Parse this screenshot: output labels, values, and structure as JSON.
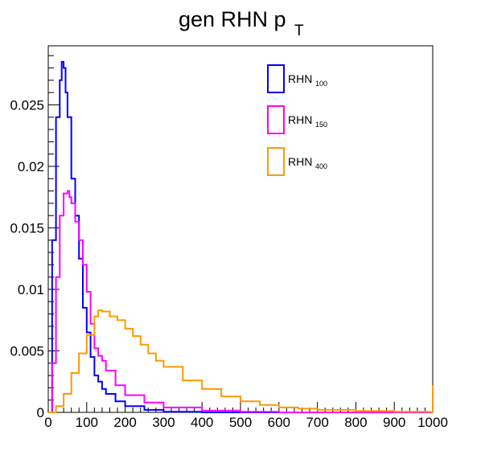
{
  "chart_data": {
    "type": "line",
    "style": "step-histogram",
    "title_main": "gen RHN p",
    "title_sub": "T",
    "xlabel": "",
    "ylabel": "",
    "xlim": [
      0,
      1000
    ],
    "ylim": [
      0,
      0.0298
    ],
    "xticks": [
      0,
      100,
      200,
      300,
      400,
      500,
      600,
      700,
      800,
      900,
      1000
    ],
    "xtick_labels": [
      "0",
      "100",
      "200",
      "300",
      "400",
      "500",
      "600",
      "700",
      "800",
      "900",
      "1000"
    ],
    "yticks": [
      0,
      0.005,
      0.01,
      0.015,
      0.02,
      0.025
    ],
    "ytick_labels": [
      "0",
      "0.005",
      "0.01",
      "0.015",
      "0.02",
      "0.025"
    ],
    "grid": false,
    "legend_position": "top-right",
    "series": [
      {
        "name": "RHN",
        "name_sub": "100",
        "color": "#0000ff",
        "x": [
          0,
          10,
          20,
          30,
          35,
          40,
          45,
          50,
          60,
          70,
          80,
          90,
          100,
          110,
          120,
          130,
          140,
          150,
          175,
          200,
          250,
          300,
          400,
          1000
        ],
        "y": [
          0,
          0.014,
          0.024,
          0.027,
          0.0285,
          0.028,
          0.026,
          0.024,
          0.019,
          0.016,
          0.0125,
          0.0085,
          0.0065,
          0.0045,
          0.003,
          0.0025,
          0.0019,
          0.0015,
          0.0009,
          0.0005,
          0.0002,
          5e-05,
          0,
          0
        ]
      },
      {
        "name": "RHN",
        "name_sub": "150",
        "color": "#ff00ff",
        "x": [
          0,
          10,
          20,
          30,
          40,
          50,
          55,
          60,
          70,
          80,
          90,
          100,
          110,
          120,
          130,
          140,
          150,
          175,
          200,
          250,
          300,
          400,
          500,
          600,
          1000
        ],
        "y": [
          0,
          0.004,
          0.011,
          0.016,
          0.0178,
          0.018,
          0.0175,
          0.017,
          0.0155,
          0.014,
          0.012,
          0.0098,
          0.0072,
          0.0052,
          0.0046,
          0.0042,
          0.0034,
          0.0022,
          0.0014,
          0.0008,
          0.0004,
          0.00015,
          5e-05,
          0,
          0
        ]
      },
      {
        "name": "RHN",
        "name_sub": "400",
        "color": "#ff9900",
        "x": [
          0,
          20,
          40,
          60,
          80,
          100,
          120,
          130,
          140,
          160,
          180,
          200,
          220,
          240,
          260,
          280,
          300,
          350,
          400,
          450,
          500,
          550,
          600,
          650,
          700,
          800,
          900,
          990,
          1000
        ],
        "y": [
          0,
          0.0005,
          0.0015,
          0.0032,
          0.0048,
          0.0063,
          0.0078,
          0.0083,
          0.0082,
          0.0078,
          0.0075,
          0.0068,
          0.0062,
          0.0055,
          0.0048,
          0.0042,
          0.0037,
          0.0026,
          0.0019,
          0.0013,
          0.0009,
          0.0006,
          0.0004,
          0.0003,
          0.0002,
          0.00012,
          6e-05,
          3e-05,
          0.0022
        ]
      }
    ]
  }
}
